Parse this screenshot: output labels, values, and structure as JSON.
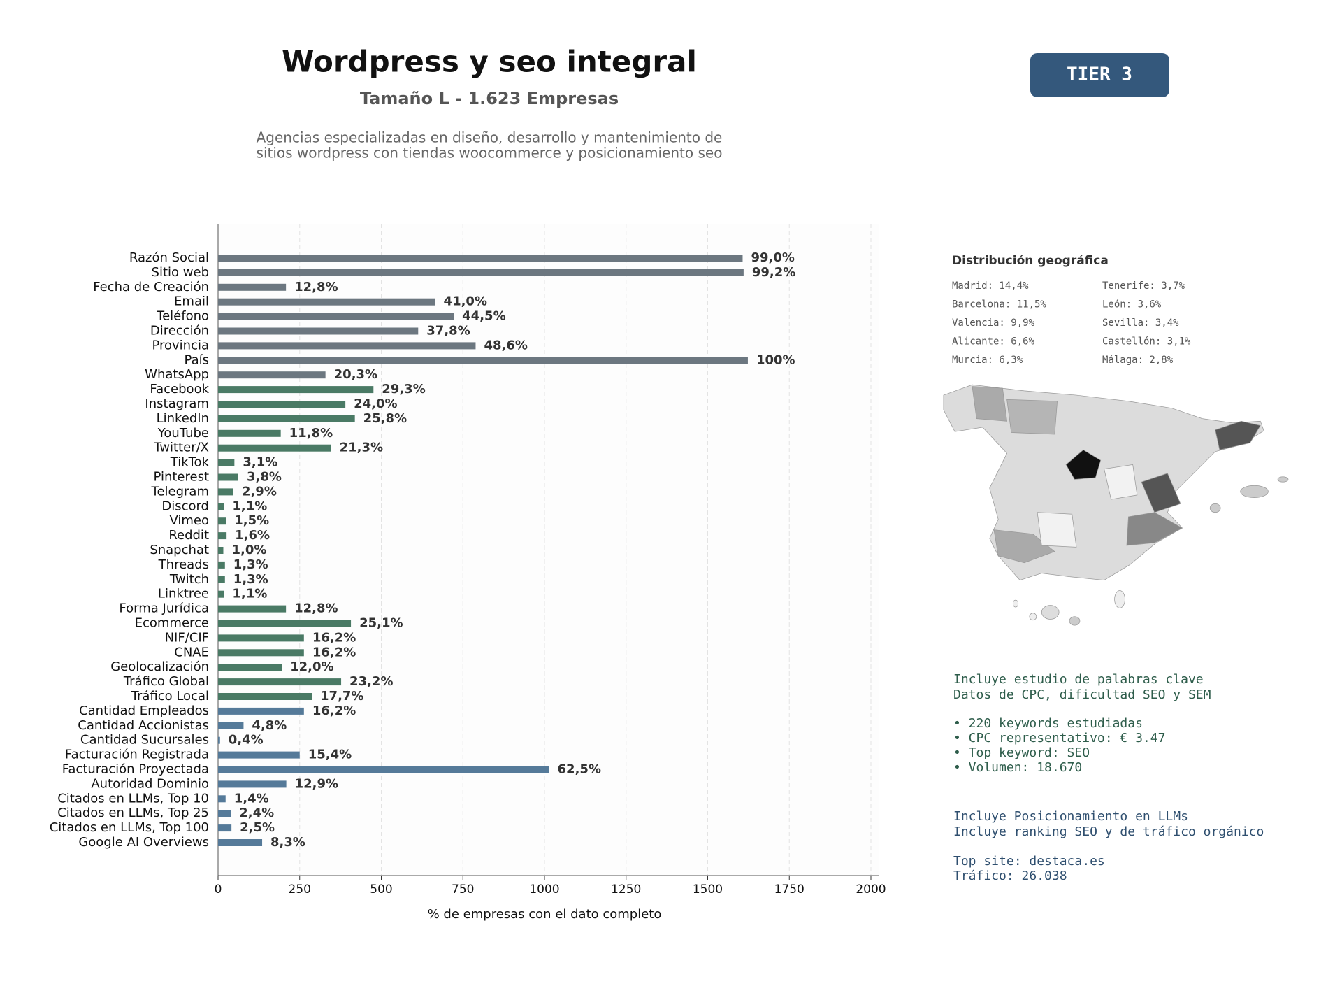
{
  "header": {
    "title": "Wordpress y seo integral",
    "subtitle": "Tamaño L - 1.623 Empresas",
    "description": [
      "Agencias especializadas en diseño, desarrollo y mantenimiento de",
      "sitios wordpress con tiendas woocommerce y posicionamiento seo"
    ],
    "badge": "TIER 3"
  },
  "chart_data": {
    "type": "barh",
    "categories": [
      "Razón Social",
      "Sitio web",
      "Fecha de Creación",
      "Email",
      "Teléfono",
      "Dirección",
      "Provincia",
      "País",
      "WhatsApp",
      "Facebook",
      "Instagram",
      "LinkedIn",
      "YouTube",
      "Twitter/X",
      "TikTok",
      "Pinterest",
      "Telegram",
      "Discord",
      "Vimeo",
      "Reddit",
      "Snapchat",
      "Threads",
      "Twitch",
      "Linktree",
      "Forma Jurídica",
      "Ecommerce",
      "NIF/CIF",
      "CNAE",
      "Geolocalización",
      "Tráfico Global",
      "Tráfico Local",
      "Cantidad Empleados",
      "Cantidad Accionistas",
      "Cantidad Sucursales",
      "Facturación Registrada",
      "Facturación Proyectada",
      "Autoridad Dominio",
      "Citados en LLMs, Top 10",
      "Citados en LLMs, Top 25",
      "Citados en LLMs, Top 100",
      "Google AI Overviews"
    ],
    "values": [
      1607,
      1610,
      208,
      665,
      722,
      613,
      789,
      1623,
      329,
      476,
      390,
      419,
      192,
      346,
      50,
      62,
      47,
      18,
      24,
      26,
      16,
      21,
      21,
      18,
      208,
      407,
      263,
      263,
      195,
      377,
      287,
      263,
      78,
      6,
      250,
      1014,
      209,
      23,
      39,
      41,
      135
    ],
    "value_labels": [
      "99,0%",
      "99,2%",
      "12,8%",
      "41,0%",
      "44,5%",
      "37,8%",
      "48,6%",
      "100%",
      "20,3%",
      "29,3%",
      "24,0%",
      "25,8%",
      "11,8%",
      "21,3%",
      "3,1%",
      "3,8%",
      "2,9%",
      "1,1%",
      "1,5%",
      "1,6%",
      "1,0%",
      "1,3%",
      "1,3%",
      "1,1%",
      "12,8%",
      "25,1%",
      "16,2%",
      "16,2%",
      "12,0%",
      "23,2%",
      "17,7%",
      "16,2%",
      "4,8%",
      "0,4%",
      "15,4%",
      "62,5%",
      "12,9%",
      "1,4%",
      "2,4%",
      "2,5%",
      "8,3%"
    ],
    "colors": [
      "#6c7780",
      "#6c7780",
      "#6c7780",
      "#6c7780",
      "#6c7780",
      "#6c7780",
      "#6c7780",
      "#6c7780",
      "#6c7780",
      "#4a7a65",
      "#4a7a65",
      "#4a7a65",
      "#4a7a65",
      "#4a7a65",
      "#4a7a65",
      "#4a7a65",
      "#4a7a65",
      "#4a7a65",
      "#4a7a65",
      "#4a7a65",
      "#4a7a65",
      "#4a7a65",
      "#4a7a65",
      "#4a7a65",
      "#4a7a65",
      "#4a7a65",
      "#4a7a65",
      "#4a7a65",
      "#4a7a65",
      "#4a7a65",
      "#4a7a65",
      "#557a99",
      "#557a99",
      "#557a99",
      "#557a99",
      "#557a99",
      "#557a99",
      "#557a99",
      "#557a99",
      "#557a99",
      "#557a99"
    ],
    "xlim": [
      0,
      2000
    ],
    "xticks": [
      0,
      250,
      500,
      750,
      1000,
      1250,
      1500,
      1750,
      2000
    ],
    "xlabel": "% de empresas con el dato completo",
    "grid": true
  },
  "panel": {
    "geo_title": "Distribución geográfica",
    "geo_left": [
      "Madrid: 14,4%",
      "Barcelona: 11,5%",
      "Valencia: 9,9%",
      "Alicante: 6,6%",
      "Murcia: 6,3%"
    ],
    "geo_right": [
      "Tenerife: 3,7%",
      "León: 3,6%",
      "Sevilla: 3,4%",
      "Castellón: 3,1%",
      "Málaga: 2,8%"
    ],
    "keywords_intro": [
      "Incluye estudio de palabras clave",
      "Datos de CPC, dificultad SEO y SEM"
    ],
    "keywords": [
      "• 220 keywords estudiadas",
      "• CPC representativo: € 3.47",
      "• Top keyword: SEO",
      "• Volumen: 18.670"
    ],
    "llm": [
      "Incluye Posicionamiento en LLMs",
      "Incluye ranking SEO y de tráfico orgánico"
    ],
    "top": [
      "Top site: destaca.es",
      "Tráfico: 26.038"
    ]
  }
}
